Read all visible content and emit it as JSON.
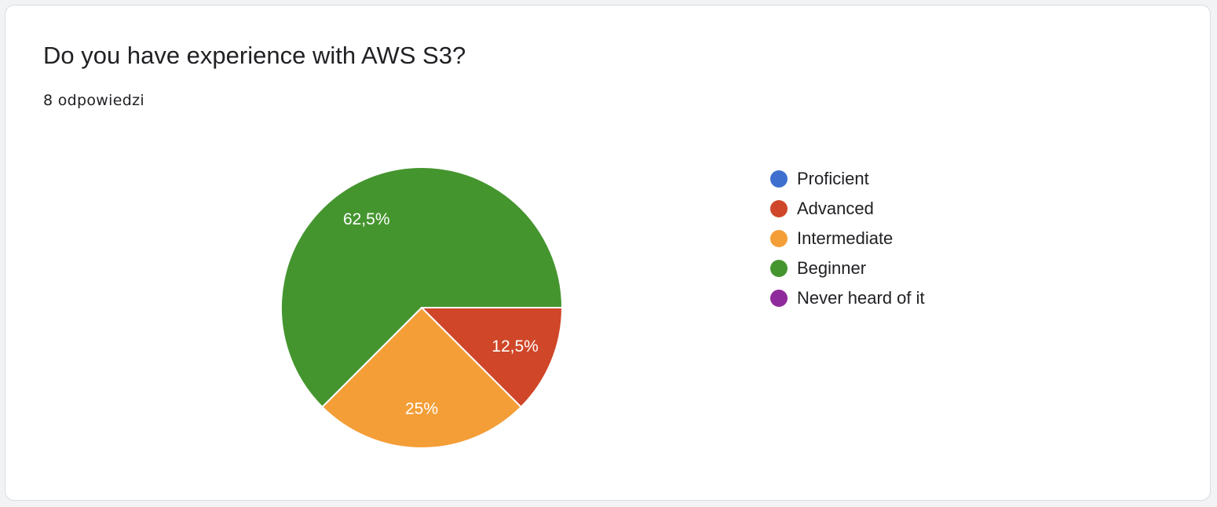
{
  "question": {
    "title": "Do you have experience with AWS S3?",
    "responses": "8 odpowiedzi"
  },
  "chart_data": {
    "type": "pie",
    "title": "Do you have experience with AWS S3?",
    "categories": [
      "Proficient",
      "Advanced",
      "Intermediate",
      "Beginner",
      "Never heard of it"
    ],
    "values": [
      0,
      12.5,
      25,
      62.5,
      0
    ],
    "labels": [
      "",
      "12,5%",
      "25%",
      "62,5%",
      ""
    ],
    "colors": [
      "#3f6fce",
      "#cf4628",
      "#f49e37",
      "#45952f",
      "#8f2a9c"
    ],
    "start": "right (3 o'clock), clockwise",
    "legend": "right",
    "total_responses": 8
  }
}
